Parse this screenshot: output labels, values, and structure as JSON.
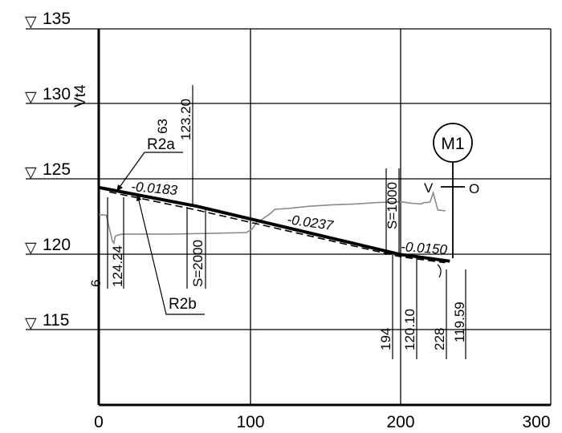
{
  "levels": [
    "135",
    "130",
    "125",
    "120",
    "115"
  ],
  "x_ticks": [
    "0",
    "100",
    "200",
    "300"
  ],
  "marker": "▽",
  "y_label": "Vt4",
  "branch_a": "R2a",
  "branch_a_sup": "63",
  "branch_b": "R2b",
  "grades": [
    "-0.0183",
    "-0.0237",
    "-0.0150"
  ],
  "curves": [
    "S=2000",
    "S=1000"
  ],
  "stations": [
    "6",
    "194",
    "228"
  ],
  "elevations": [
    "123.20",
    "124.24",
    "120.10",
    "119.59"
  ],
  "node": "M1",
  "node_v": "V",
  "node_o": "O",
  "chart_data": {
    "type": "line",
    "xlim": [
      0,
      300
    ],
    "ylim": [
      110,
      136
    ],
    "x_ticks": [
      0,
      100,
      200,
      300
    ],
    "y_ticks": [
      135,
      130,
      125,
      120,
      115
    ],
    "series": [
      {
        "x": [
          0,
          65,
          200,
          233
        ],
        "y": [
          124.45,
          123.2,
          120.0,
          119.55
        ]
      },
      {
        "x": [
          7,
          65,
          200,
          230
        ],
        "y": [
          124.15,
          122.95,
          119.85,
          119.45
        ]
      },
      {
        "x": [
          0,
          5,
          9,
          10,
          11,
          13,
          16,
          20,
          50,
          98,
          102,
          105,
          108,
          110,
          113,
          117,
          125,
          140,
          155,
          170,
          185,
          200,
          208,
          214,
          216,
          218,
          220,
          222,
          225,
          230
        ],
        "y": [
          122.65,
          122.6,
          120.9,
          120.75,
          121.2,
          121.3,
          121.35,
          121.35,
          121.35,
          121.45,
          121.7,
          122.2,
          122.3,
          122.45,
          122.65,
          123.0,
          123.05,
          123.2,
          123.3,
          123.35,
          123.45,
          123.5,
          123.4,
          123.35,
          123.45,
          123.45,
          123.5,
          124.1,
          122.95,
          122.9
        ]
      }
    ]
  }
}
